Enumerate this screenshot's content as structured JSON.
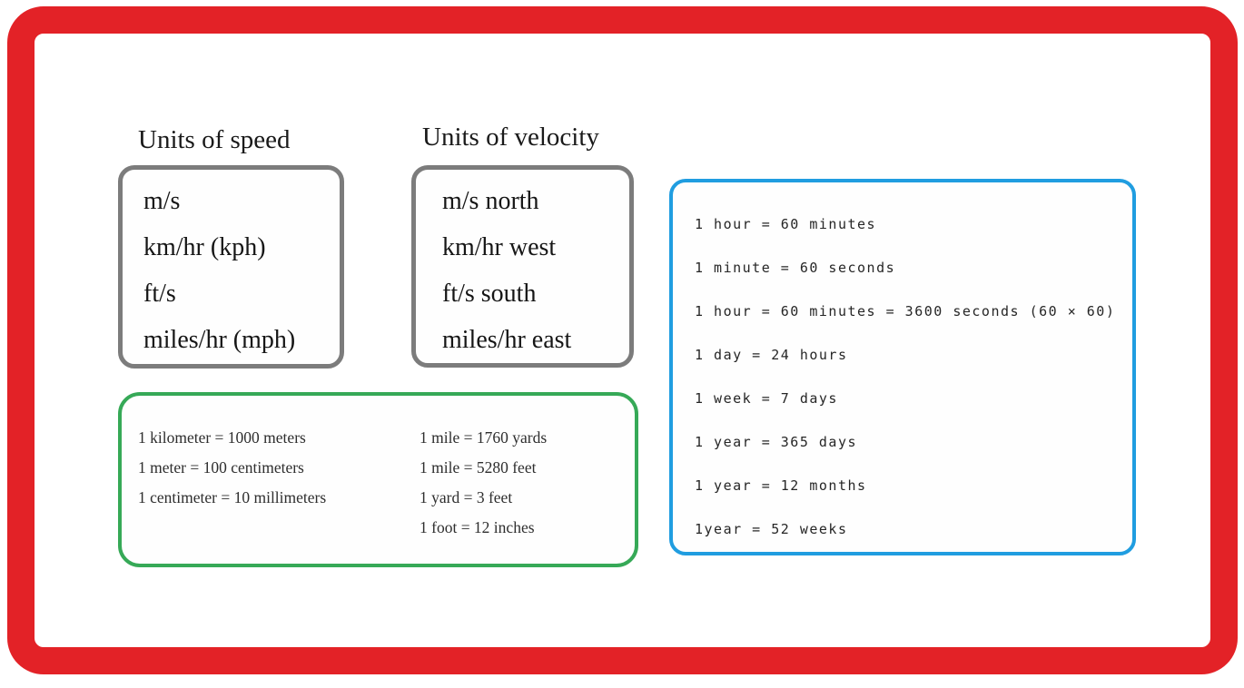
{
  "frame": {
    "color": "#e32227",
    "background": "#ffffff"
  },
  "speed_panel": {
    "title": "Units of speed",
    "border_color": "#7c7c7c",
    "items": [
      "m/s",
      "km/hr (kph)",
      "ft/s",
      "miles/hr (mph)"
    ]
  },
  "velocity_panel": {
    "title": "Units of velocity",
    "border_color": "#7c7c7c",
    "items": [
      "m/s north",
      "km/hr west",
      "ft/s south",
      "miles/hr east"
    ]
  },
  "length_panel": {
    "border_color": "#36a957",
    "left_column": [
      "1 kilometer = 1000 meters",
      "1 meter = 100 centimeters",
      "1 centimeter = 10 millimeters"
    ],
    "right_column": [
      "1 mile = 1760 yards",
      "1 mile = 5280 feet",
      "1 yard = 3 feet",
      "1 foot = 12 inches"
    ]
  },
  "time_panel": {
    "border_color": "#209de0",
    "items": [
      "1 hour = 60 minutes",
      "1 minute = 60 seconds",
      "1 hour = 60 minutes = 3600 seconds (60 × 60)",
      "1 day = 24 hours",
      "1 week = 7 days",
      "1 year = 365 days",
      "1 year = 12 months",
      "1year = 52 weeks"
    ]
  }
}
